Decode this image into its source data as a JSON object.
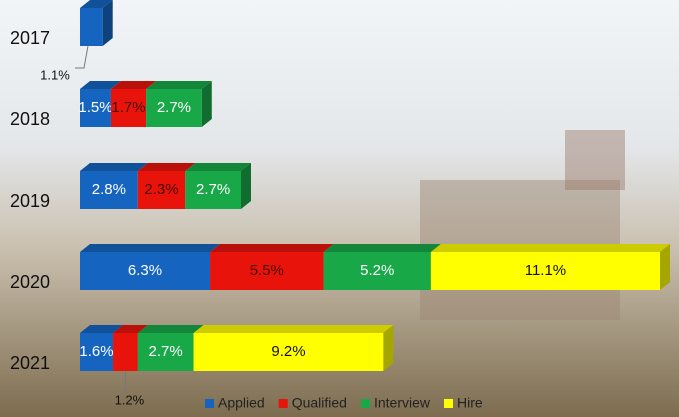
{
  "chart_data": {
    "type": "stacked-bar-3d",
    "categories": [
      "2017",
      "2018",
      "2019",
      "2020",
      "2021"
    ],
    "series": [
      {
        "name": "Applied",
        "color": "#1565c0",
        "values": [
          1.1,
          1.5,
          2.8,
          6.3,
          1.6
        ],
        "value_labels": [
          "1.1%",
          "1.5%",
          "2.8%",
          "6.3%",
          "1.6%"
        ]
      },
      {
        "name": "Qualified",
        "color": "#e8140c",
        "values": [
          null,
          1.7,
          2.3,
          5.5,
          1.2
        ],
        "value_labels": [
          null,
          "1.7%",
          "2.3%",
          "5.5%",
          "1.2%"
        ]
      },
      {
        "name": "Interview",
        "color": "#18a848",
        "values": [
          null,
          2.7,
          2.7,
          5.2,
          2.7
        ],
        "value_labels": [
          null,
          "2.7%",
          "2.7%",
          "5.2%",
          "2.7%"
        ]
      },
      {
        "name": "Hire",
        "color": "#ffff00",
        "values": [
          null,
          null,
          null,
          11.1,
          9.2
        ],
        "value_labels": [
          null,
          null,
          null,
          "11.1%",
          "9.2%"
        ]
      }
    ]
  }
}
